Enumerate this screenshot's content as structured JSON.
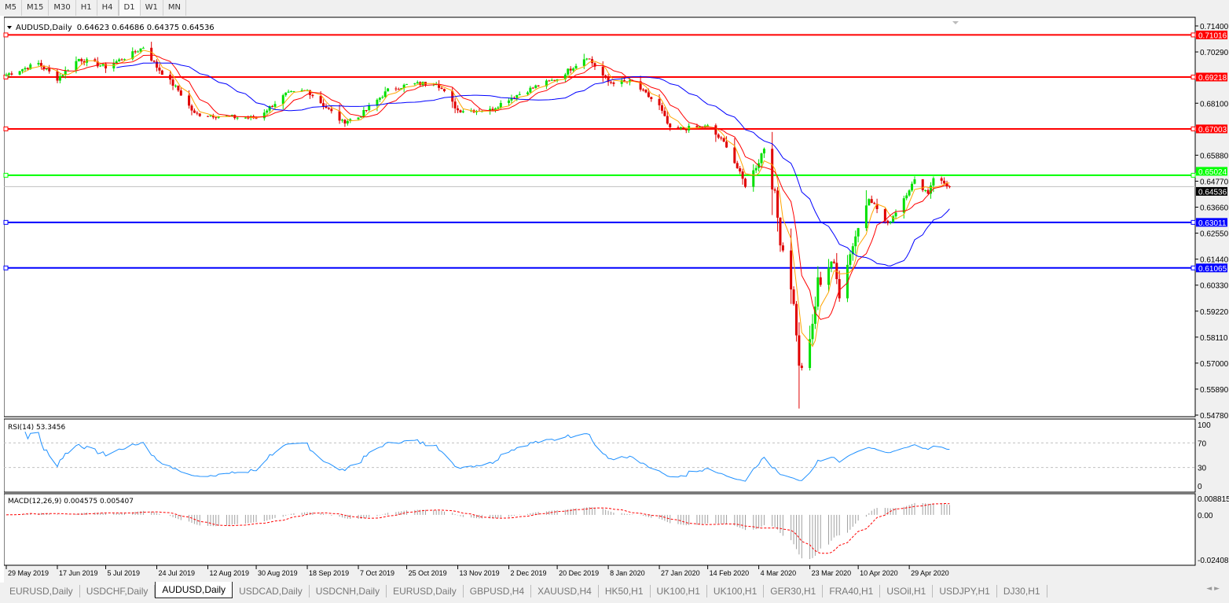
{
  "timeframes": [
    "M5",
    "M15",
    "M30",
    "H1",
    "H4",
    "D1",
    "W1",
    "MN"
  ],
  "selected_timeframe": "D1",
  "chart_header": {
    "symbol": "AUDUSD,Daily",
    "ohlc": "0.64623 0.64686 0.64375 0.64536"
  },
  "rsi_label": "RSI(14) 53.3456",
  "macd_label": "MACD(12,26,9) 0.004575 0.005407",
  "colors": {
    "bull": "#00e000",
    "bear": "#e00000",
    "ma_fast": "#ffa500",
    "ma_mid": "#ff0000",
    "ma_slow": "#0000ff",
    "rsi": "#1e90ff",
    "macd_hist": "#a0a0a0",
    "macd_signal": "#ff0000"
  },
  "bottom_tabs": [
    "EURUSD,Daily",
    "USDCHF,Daily",
    "AUDUSD,Daily",
    "USDCAD,Daily",
    "USDCNH,Daily",
    "EURUSD,Daily",
    "GBPUSD,H4",
    "XAUUSD,H4",
    "HK50,H1",
    "UK100,H1",
    "UK100,H1",
    "GER30,H1",
    "FRA40,H1",
    "USOil,H1",
    "USDJPY,H1",
    "DJ30,H1"
  ],
  "active_tab": "AUDUSD,Daily",
  "tab_scroll": {
    "left": "◄",
    "right": "►"
  },
  "chart_data": {
    "type": "candlestick",
    "symbol": "AUDUSD",
    "timeframe": "Daily",
    "ylim": [
      0.5478,
      0.714
    ],
    "y_ticks": [
      "0.71400",
      "0.70290",
      "0.68100",
      "0.65880",
      "0.64770",
      "0.63660",
      "0.62550",
      "0.61440",
      "0.60330",
      "0.59220",
      "0.58110",
      "0.57000",
      "0.55890",
      "0.54780"
    ],
    "x_ticks": [
      "29 May 2019",
      "17 Jun 2019",
      "5 Jul 2019",
      "24 Jul 2019",
      "12 Aug 2019",
      "30 Aug 2019",
      "18 Sep 2019",
      "7 Oct 2019",
      "25 Oct 2019",
      "13 Nov 2019",
      "2 Dec 2019",
      "20 Dec 2019",
      "8 Jan 2020",
      "27 Jan 2020",
      "14 Feb 2020",
      "4 Mar 2020",
      "23 Mar 2020",
      "10 Apr 2020",
      "29 Apr 2020"
    ],
    "x_tick_dates": [
      "2019-05-29",
      "2019-06-17",
      "2019-07-05",
      "2019-07-24",
      "2019-08-12",
      "2019-08-30",
      "2019-09-18",
      "2019-10-07",
      "2019-10-25",
      "2019-11-13",
      "2019-12-02",
      "2019-12-20",
      "2020-01-08",
      "2020-01-27",
      "2020-02-14",
      "2020-03-04",
      "2020-03-23",
      "2020-04-10",
      "2020-04-29"
    ],
    "approx_close": [
      [
        "2019-05-29",
        0.6932
      ],
      [
        "2019-06-10",
        0.698
      ],
      [
        "2019-06-17",
        0.6915
      ],
      [
        "2019-06-25",
        0.6999
      ],
      [
        "2019-07-05",
        0.6965
      ],
      [
        "2019-07-15",
        0.7022
      ],
      [
        "2019-07-19",
        0.705
      ],
      [
        "2019-07-24",
        0.6965
      ],
      [
        "2019-08-01",
        0.6865
      ],
      [
        "2019-08-07",
        0.6764
      ],
      [
        "2019-08-12",
        0.676
      ],
      [
        "2019-08-22",
        0.675
      ],
      [
        "2019-08-30",
        0.6747
      ],
      [
        "2019-09-10",
        0.6848
      ],
      [
        "2019-09-18",
        0.6865
      ],
      [
        "2019-10-01",
        0.673
      ],
      [
        "2019-10-07",
        0.675
      ],
      [
        "2019-10-18",
        0.6865
      ],
      [
        "2019-10-25",
        0.6888
      ],
      [
        "2019-11-05",
        0.69
      ],
      [
        "2019-11-13",
        0.678
      ],
      [
        "2019-11-25",
        0.678
      ],
      [
        "2019-12-02",
        0.683
      ],
      [
        "2019-12-12",
        0.6881
      ],
      [
        "2019-12-20",
        0.6915
      ],
      [
        "2019-12-31",
        0.701
      ],
      [
        "2020-01-08",
        0.69
      ],
      [
        "2020-01-17",
        0.69
      ],
      [
        "2020-01-27",
        0.6797
      ],
      [
        "2020-01-31",
        0.6697
      ],
      [
        "2020-02-14",
        0.671
      ],
      [
        "2020-02-21",
        0.663
      ],
      [
        "2020-02-28",
        0.646
      ],
      [
        "2020-03-04",
        0.656
      ],
      [
        "2020-03-06",
        0.663
      ],
      [
        "2020-03-09",
        0.648
      ],
      [
        "2020-03-12",
        0.624
      ],
      [
        "2020-03-16",
        0.604
      ],
      [
        "2020-03-18",
        0.584
      ],
      [
        "2020-03-19",
        0.567
      ],
      [
        "2020-03-23",
        0.577
      ],
      [
        "2020-03-26",
        0.604
      ],
      [
        "2020-03-31",
        0.614
      ],
      [
        "2020-04-03",
        0.601
      ],
      [
        "2020-04-09",
        0.6243
      ],
      [
        "2020-04-14",
        0.641
      ],
      [
        "2020-04-21",
        0.629
      ],
      [
        "2020-04-29",
        0.6445
      ],
      [
        "2020-05-01",
        0.6478
      ],
      [
        "2020-05-06",
        0.6428
      ],
      [
        "2020-05-08",
        0.6495
      ],
      [
        "2020-05-14",
        0.64536
      ]
    ],
    "low_extreme": 0.5506,
    "horizontal_lines": [
      {
        "price": "0.71016",
        "color": "#ff0000"
      },
      {
        "price": "0.69218",
        "color": "#ff0000"
      },
      {
        "price": "0.67003",
        "color": "#ff0000"
      },
      {
        "price": "0.65024",
        "color": "#00ff00"
      },
      {
        "price": "0.63011",
        "color": "#0000ff"
      },
      {
        "price": "0.61065",
        "color": "#0000ff"
      }
    ],
    "current_price": "0.64536",
    "rsi": {
      "levels": [
        "100",
        "70",
        "30",
        "0"
      ],
      "value": 53.3456
    },
    "macd": {
      "ticks": [
        "0.008815",
        "0.00",
        "-0.024082"
      ],
      "main": 0.004575,
      "signal": 0.005407
    }
  }
}
